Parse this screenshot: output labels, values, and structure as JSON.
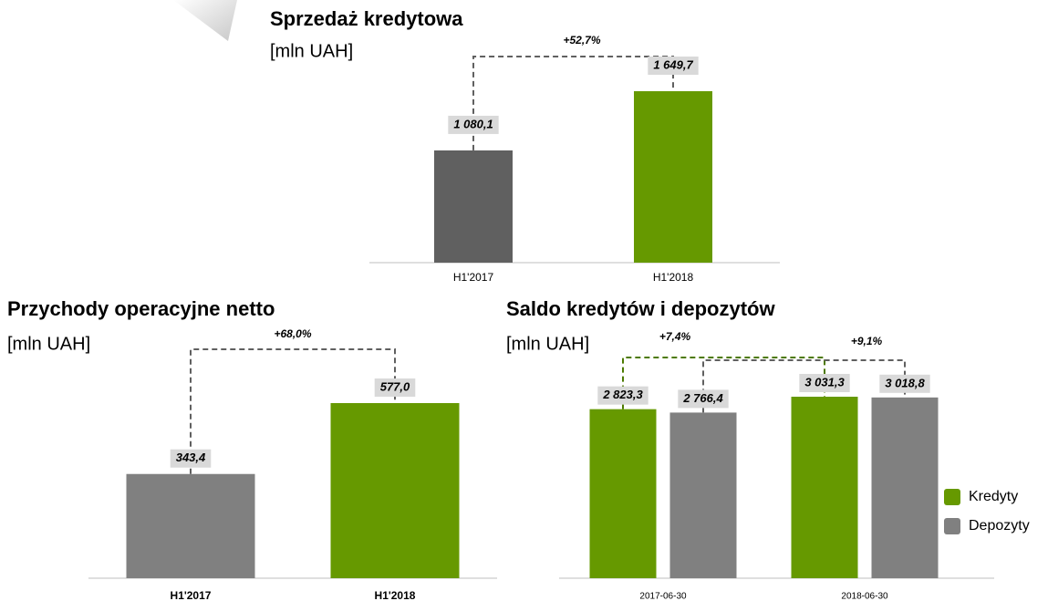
{
  "chart_data": [
    {
      "type": "bar",
      "title": "Sprzedaż kredytowa",
      "subtitle": "[mln UAH]",
      "categories": [
        "H1'2017",
        "H1'2018"
      ],
      "values": [
        1080.1,
        1649.7
      ],
      "value_labels": [
        "1 080,1",
        "1 649,7"
      ],
      "colors": [
        "#606060",
        "#669900"
      ],
      "annotations": [
        "+52,7%"
      ]
    },
    {
      "type": "bar",
      "title": "Przychody operacyjne netto",
      "subtitle": "[mln UAH]",
      "categories": [
        "H1'2017",
        "H1'2018"
      ],
      "values": [
        343.4,
        577.0
      ],
      "value_labels": [
        "343,4",
        "577,0"
      ],
      "colors": [
        "#808080",
        "#669900"
      ],
      "annotations": [
        "+68,0%"
      ]
    },
    {
      "type": "bar",
      "title": "Saldo kredytów i depozytów",
      "subtitle": "[mln UAH]",
      "categories": [
        "2017-06-30",
        "2018-06-30"
      ],
      "series": [
        {
          "name": "Kredyty",
          "color": "#669900",
          "values": [
            2823.3,
            3031.3
          ],
          "value_labels": [
            "2 823,3",
            "3 031,3"
          ]
        },
        {
          "name": "Depozyty",
          "color": "#808080",
          "values": [
            2766.4,
            3018.8
          ],
          "value_labels": [
            "2 766,4",
            "3 018,8"
          ]
        }
      ],
      "annotations": [
        "+7,4%",
        "+9,1%"
      ],
      "legend": "right"
    }
  ]
}
